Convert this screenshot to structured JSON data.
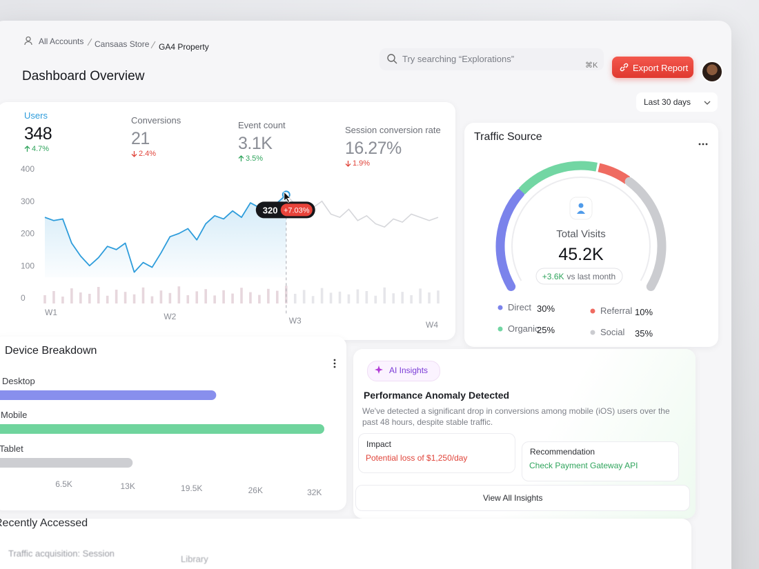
{
  "header": {
    "breadcrumb": [
      "All Accounts",
      "Cansaas Store",
      "GA4 Property"
    ],
    "search_placeholder": "Try searching “Explorations”",
    "search_shortcut": "⌘K",
    "export_button": "Export Report",
    "title": "Dashboard Overview",
    "date_range": "Last 30 days"
  },
  "metrics": [
    {
      "label": "Users",
      "value": "348",
      "change": "4.7%",
      "trend": "up",
      "active": true
    },
    {
      "label": "Conversions",
      "value": "21",
      "change": "2.4%",
      "trend": "down",
      "active": false
    },
    {
      "label": "Event count",
      "value": "3.1K",
      "change": "3.5%",
      "trend": "up",
      "active": false
    },
    {
      "label": "Session conversion rate",
      "value": "16.27%",
      "change": "1.9%",
      "trend": "down",
      "active": false
    }
  ],
  "users_chart": {
    "type": "line",
    "x": [
      0,
      1,
      2,
      3,
      4,
      5,
      6,
      7,
      8,
      9,
      10,
      11,
      12,
      13,
      14,
      15,
      16,
      17,
      18,
      19,
      20,
      21,
      22,
      23,
      24,
      25,
      26,
      27,
      28,
      29,
      30,
      31,
      32,
      33,
      34,
      35,
      36,
      37,
      38,
      39,
      40,
      41,
      42,
      43,
      44
    ],
    "values": [
      250,
      240,
      245,
      170,
      130,
      100,
      125,
      160,
      150,
      170,
      80,
      110,
      95,
      140,
      190,
      200,
      215,
      180,
      230,
      255,
      245,
      270,
      250,
      295,
      280,
      260,
      295,
      320,
      290,
      275,
      280,
      300,
      260,
      250,
      275,
      240,
      255,
      230,
      220,
      245,
      235,
      260,
      250,
      240,
      250
    ],
    "xlim": [
      0,
      44
    ],
    "xticks": [
      {
        "value": 0,
        "label": "W1"
      },
      {
        "value": 14,
        "label": "W2"
      },
      {
        "value": 28,
        "label": "W3"
      },
      {
        "value": 44,
        "label": "W4"
      }
    ],
    "ylim": [
      0,
      400
    ],
    "yticks": [
      0,
      100,
      200,
      300,
      400
    ],
    "color": "#2d9cdb",
    "rest_color": "#d6d7db",
    "highlight_index": 27,
    "tooltip_change": "+7.03%",
    "volume": [
      30,
      45,
      25,
      55,
      40,
      35,
      60,
      28,
      50,
      42,
      33,
      58,
      26,
      47,
      38,
      62,
      30,
      44,
      52,
      29,
      48,
      36,
      57,
      41,
      31,
      53,
      46,
      64,
      35,
      49,
      27,
      56,
      39,
      43,
      33,
      51,
      45,
      28,
      58,
      37,
      42,
      30,
      54,
      40,
      47
    ],
    "volume_lim": [
      0,
      100
    ]
  },
  "traffic_source": {
    "type": "gauge",
    "title": "Traffic Source",
    "center_label": "Total Visits",
    "total": "45.2K",
    "change": "+3.6K",
    "change_suffix": "vs last month",
    "categories": [
      "Direct",
      "Organic",
      "Referral",
      "Social"
    ],
    "values": [
      30,
      25,
      10,
      35
    ],
    "value_labels": [
      "30%",
      "25%",
      "10%",
      "35%"
    ],
    "colors": [
      "#7b83eb",
      "#72d6a3",
      "#ef6b61",
      "#cbccd0"
    ]
  },
  "device_breakdown": {
    "type": "bar",
    "orientation": "horizontal",
    "title": "Device Breakdown",
    "categories": [
      "Desktop",
      "Mobile",
      "Tablet"
    ],
    "values": [
      22000,
      33000,
      13500
    ],
    "colors": [
      "#7b83eb",
      "#5fcf92",
      "#c8c9cd"
    ],
    "xlim": [
      0,
      33000
    ],
    "xticks": [
      {
        "value": 6500,
        "label": "6.5K"
      },
      {
        "value": 13000,
        "label": "13K"
      },
      {
        "value": 19500,
        "label": "19.5K"
      },
      {
        "value": 26000,
        "label": "26K"
      },
      {
        "value": 32000,
        "label": "32K"
      }
    ]
  },
  "ai_insights": {
    "badge": "AI Insights",
    "heading": "Performance Anomaly Detected",
    "body": "We've detected a significant drop in conversions among mobile (iOS) users over the past 48 hours, despite stable traffic.",
    "impact": {
      "label": "Impact",
      "text": "Potential loss of $1,250/day"
    },
    "recommendation": {
      "label": "Recommendation",
      "text": "Check Payment Gateway API"
    },
    "button": "View All Insights"
  },
  "recent": {
    "title": "Recently Accessed",
    "items": [
      "Traffic acquisition: Session",
      "Library"
    ]
  }
}
